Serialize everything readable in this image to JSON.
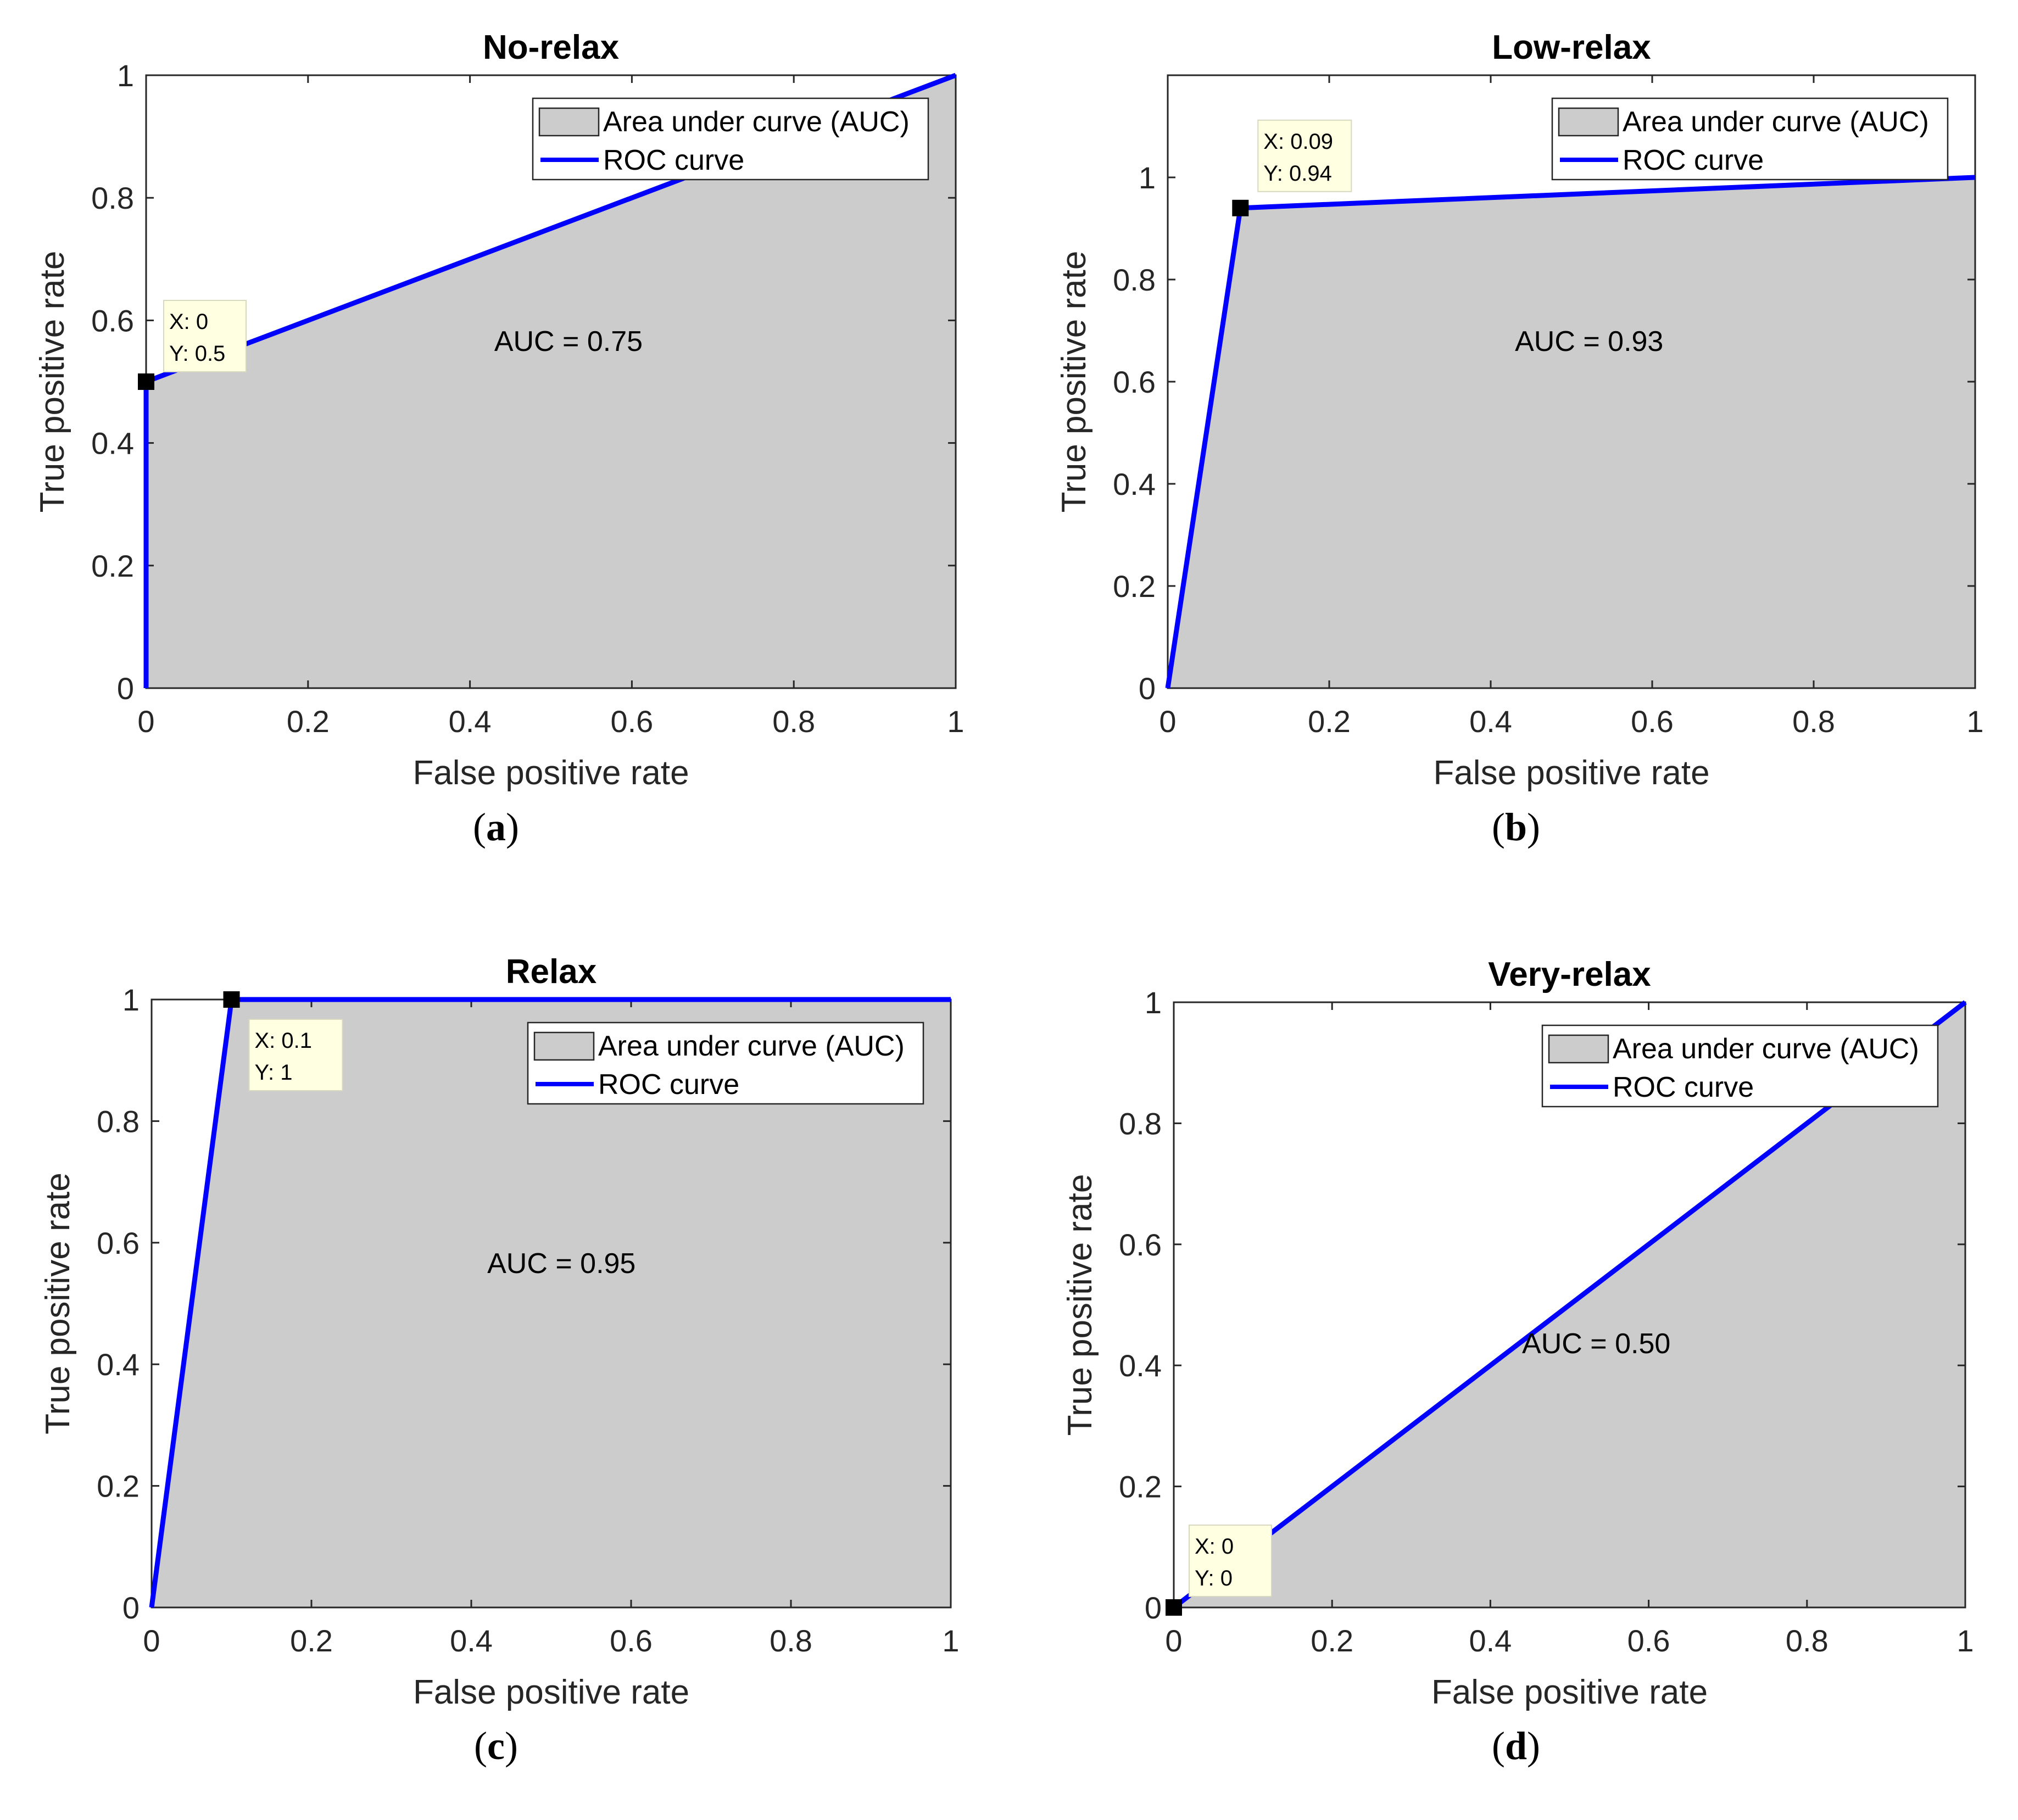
{
  "chart_data": [
    {
      "type": "area",
      "panel_label": "a",
      "title": "No-relax",
      "xlabel": "False positive rate",
      "ylabel": "True positive rate",
      "xlim": [
        0,
        1
      ],
      "ylim": [
        0,
        1
      ],
      "xticks": [
        "0",
        "0.2",
        "0.4",
        "0.6",
        "0.8",
        "1"
      ],
      "yticks": [
        "0",
        "0.2",
        "0.4",
        "0.6",
        "0.8",
        "1"
      ],
      "legend": {
        "position": "top-right",
        "entries": [
          "Area under curve (AUC)",
          "ROC curve"
        ]
      },
      "series": [
        {
          "name": "ROC curve",
          "x": [
            0,
            0,
            1
          ],
          "y": [
            0,
            0.5,
            1
          ]
        }
      ],
      "auc_text": "AUC = 0.75",
      "datatip": {
        "x": 0,
        "y": 0.5,
        "lines": [
          "X: 0",
          "Y: 0.5"
        ]
      }
    },
    {
      "type": "area",
      "panel_label": "b",
      "title": "Low-relax",
      "xlabel": "False positive rate",
      "ylabel": "True positive rate",
      "xlim": [
        0,
        1
      ],
      "ylim": [
        0,
        1.2
      ],
      "xticks": [
        "0",
        "0.2",
        "0.4",
        "0.6",
        "0.8",
        "1"
      ],
      "yticks": [
        "0",
        "0.2",
        "0.4",
        "0.6",
        "0.8",
        "1"
      ],
      "legend": {
        "position": "top-right",
        "entries": [
          "Area under curve (AUC)",
          "ROC curve"
        ]
      },
      "series": [
        {
          "name": "ROC curve",
          "x": [
            0,
            0.09,
            1
          ],
          "y": [
            0,
            0.94,
            1
          ]
        }
      ],
      "auc_text": "AUC = 0.93",
      "datatip": {
        "x": 0.09,
        "y": 0.94,
        "lines": [
          "X: 0.09",
          "Y: 0.94"
        ]
      }
    },
    {
      "type": "area",
      "panel_label": "c",
      "title": "Relax",
      "xlabel": "False positive rate",
      "ylabel": "True positive rate",
      "xlim": [
        0,
        1
      ],
      "ylim": [
        0,
        1
      ],
      "xticks": [
        "0",
        "0.2",
        "0.4",
        "0.6",
        "0.8",
        "1"
      ],
      "yticks": [
        "0",
        "0.2",
        "0.4",
        "0.6",
        "0.8",
        "1"
      ],
      "legend": {
        "position": "top-right",
        "entries": [
          "Area under curve (AUC)",
          "ROC curve"
        ]
      },
      "series": [
        {
          "name": "ROC curve",
          "x": [
            0,
            0.1,
            1
          ],
          "y": [
            0,
            1,
            1
          ]
        }
      ],
      "auc_text": "AUC = 0.95",
      "datatip": {
        "x": 0.1,
        "y": 1,
        "lines": [
          "X: 0.1",
          "Y: 1"
        ]
      }
    },
    {
      "type": "area",
      "panel_label": "d",
      "title": "Very-relax",
      "xlabel": "False positive rate",
      "ylabel": "True positive rate",
      "xlim": [
        0,
        1
      ],
      "ylim": [
        0,
        1
      ],
      "xticks": [
        "0",
        "0.2",
        "0.4",
        "0.6",
        "0.8",
        "1"
      ],
      "yticks": [
        "0",
        "0.2",
        "0.4",
        "0.6",
        "0.8",
        "1"
      ],
      "legend": {
        "position": "top-right",
        "entries": [
          "Area under curve (AUC)",
          "ROC curve"
        ]
      },
      "series": [
        {
          "name": "ROC curve",
          "x": [
            0,
            1
          ],
          "y": [
            0,
            1
          ]
        }
      ],
      "auc_text": "AUC = 0.50",
      "datatip": {
        "x": 0,
        "y": 0,
        "lines": [
          "X: 0",
          "Y: 0"
        ]
      }
    }
  ],
  "colors": {
    "roc_line": "#0000ff",
    "area_fill": "#cccccc",
    "datatip_bg": "#ffffe1",
    "marker": "#000000"
  }
}
